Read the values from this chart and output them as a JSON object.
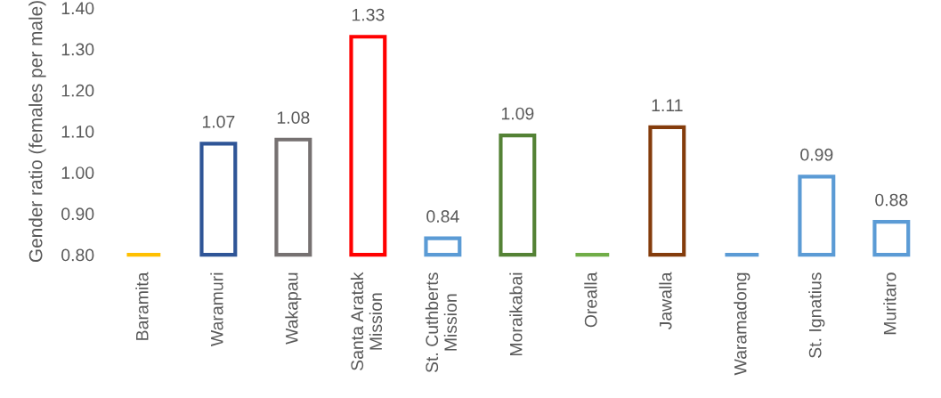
{
  "chart_data": {
    "type": "bar",
    "ylabel": "Gender ratio (females per male)",
    "categories": [
      "Baramita",
      "Waramuri",
      "Wakapau",
      "Santa Aratak\nMission",
      "St. Cuthberts\nMission",
      "Moraikabai",
      "Orealla",
      "Jawalla",
      "Waramadong",
      "St. Ignatius",
      "Muritaro"
    ],
    "values": [
      0.8,
      1.07,
      1.08,
      1.33,
      0.84,
      1.09,
      0.8,
      1.11,
      0.8,
      0.99,
      0.88
    ],
    "value_labels": [
      null,
      "1.07",
      "1.08",
      "1.33",
      "0.84",
      "1.09",
      null,
      "1.11",
      null,
      "0.99",
      "0.88"
    ],
    "colors": [
      "#ffc000",
      "#2f5597",
      "#767171",
      "#ff0000",
      "#5b9bd5",
      "#548235",
      "#70ad47",
      "#843c0c",
      "#5b9bd5",
      "#5b9bd5",
      "#5b9bd5"
    ],
    "ylim": [
      0.8,
      1.4
    ],
    "yticks": [
      {
        "value": 0.8,
        "label": "0.80"
      },
      {
        "value": 0.9,
        "label": "0.90"
      },
      {
        "value": 1.0,
        "label": "1.00"
      },
      {
        "value": 1.1,
        "label": "1.10"
      },
      {
        "value": 1.2,
        "label": "1.20"
      },
      {
        "value": 1.3,
        "label": "1.30"
      },
      {
        "value": 1.4,
        "label": "1.40"
      }
    ],
    "grid": false,
    "legend": false
  }
}
